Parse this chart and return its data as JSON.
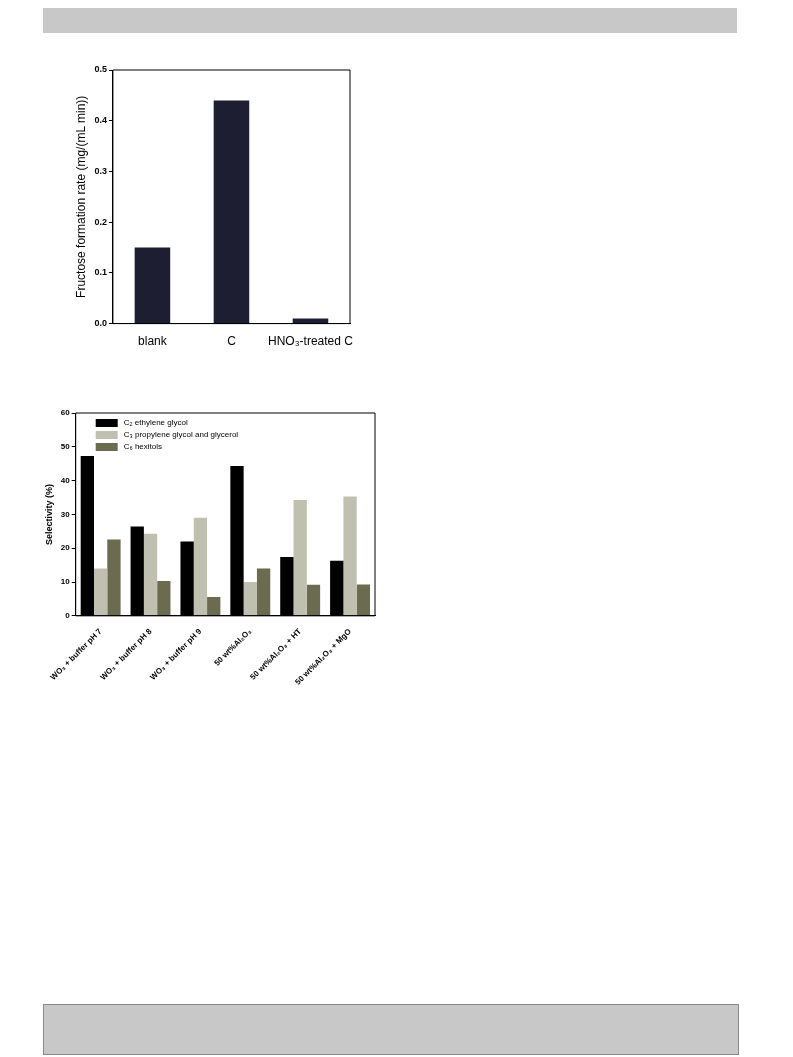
{
  "chart_data": [
    {
      "type": "bar",
      "ylabel": "Fructose formation rate (mg/(mL min))",
      "categories": [
        "blank",
        "C",
        "HNO₃-treated C"
      ],
      "values": [
        0.15,
        0.44,
        0.01
      ],
      "color": "#1e1e32",
      "ylim": [
        0,
        0.5
      ],
      "yticks": [
        {
          "value": 0,
          "label": "0.0"
        },
        0.1,
        0.2,
        0.3,
        0.4,
        0.5
      ]
    },
    {
      "type": "bar",
      "ylabel": "Selectivity (%)",
      "categories": [
        "WO₃ + buffer pH 7",
        "WO₃ + buffer pH 8",
        "WO₃ + buffer pH 9",
        "50 wt%Al₂O₃",
        "50 wt%Al₂O₃ + HT",
        "50 wt%Al₂O₃ + MgO"
      ],
      "series": [
        {
          "name": "C₂ ethylene glycol",
          "color": "#000000",
          "values": [
            47.3,
            26.4,
            22,
            44.3,
            17.4,
            16.3
          ]
        },
        {
          "name": "C₃ propylene glycol and glycerol",
          "color": "#c0c0b0",
          "values": [
            14,
            24.3,
            29,
            10,
            34.3,
            35.3
          ]
        },
        {
          "name": "C₆ hexitols",
          "color": "#6b6b4f",
          "values": [
            22.6,
            10.3,
            5.6,
            14,
            9.2,
            9.3
          ]
        }
      ],
      "ylim": [
        0,
        60
      ],
      "yticks": [
        0,
        10,
        20,
        30,
        40,
        50,
        60
      ],
      "legend": "top left"
    }
  ]
}
